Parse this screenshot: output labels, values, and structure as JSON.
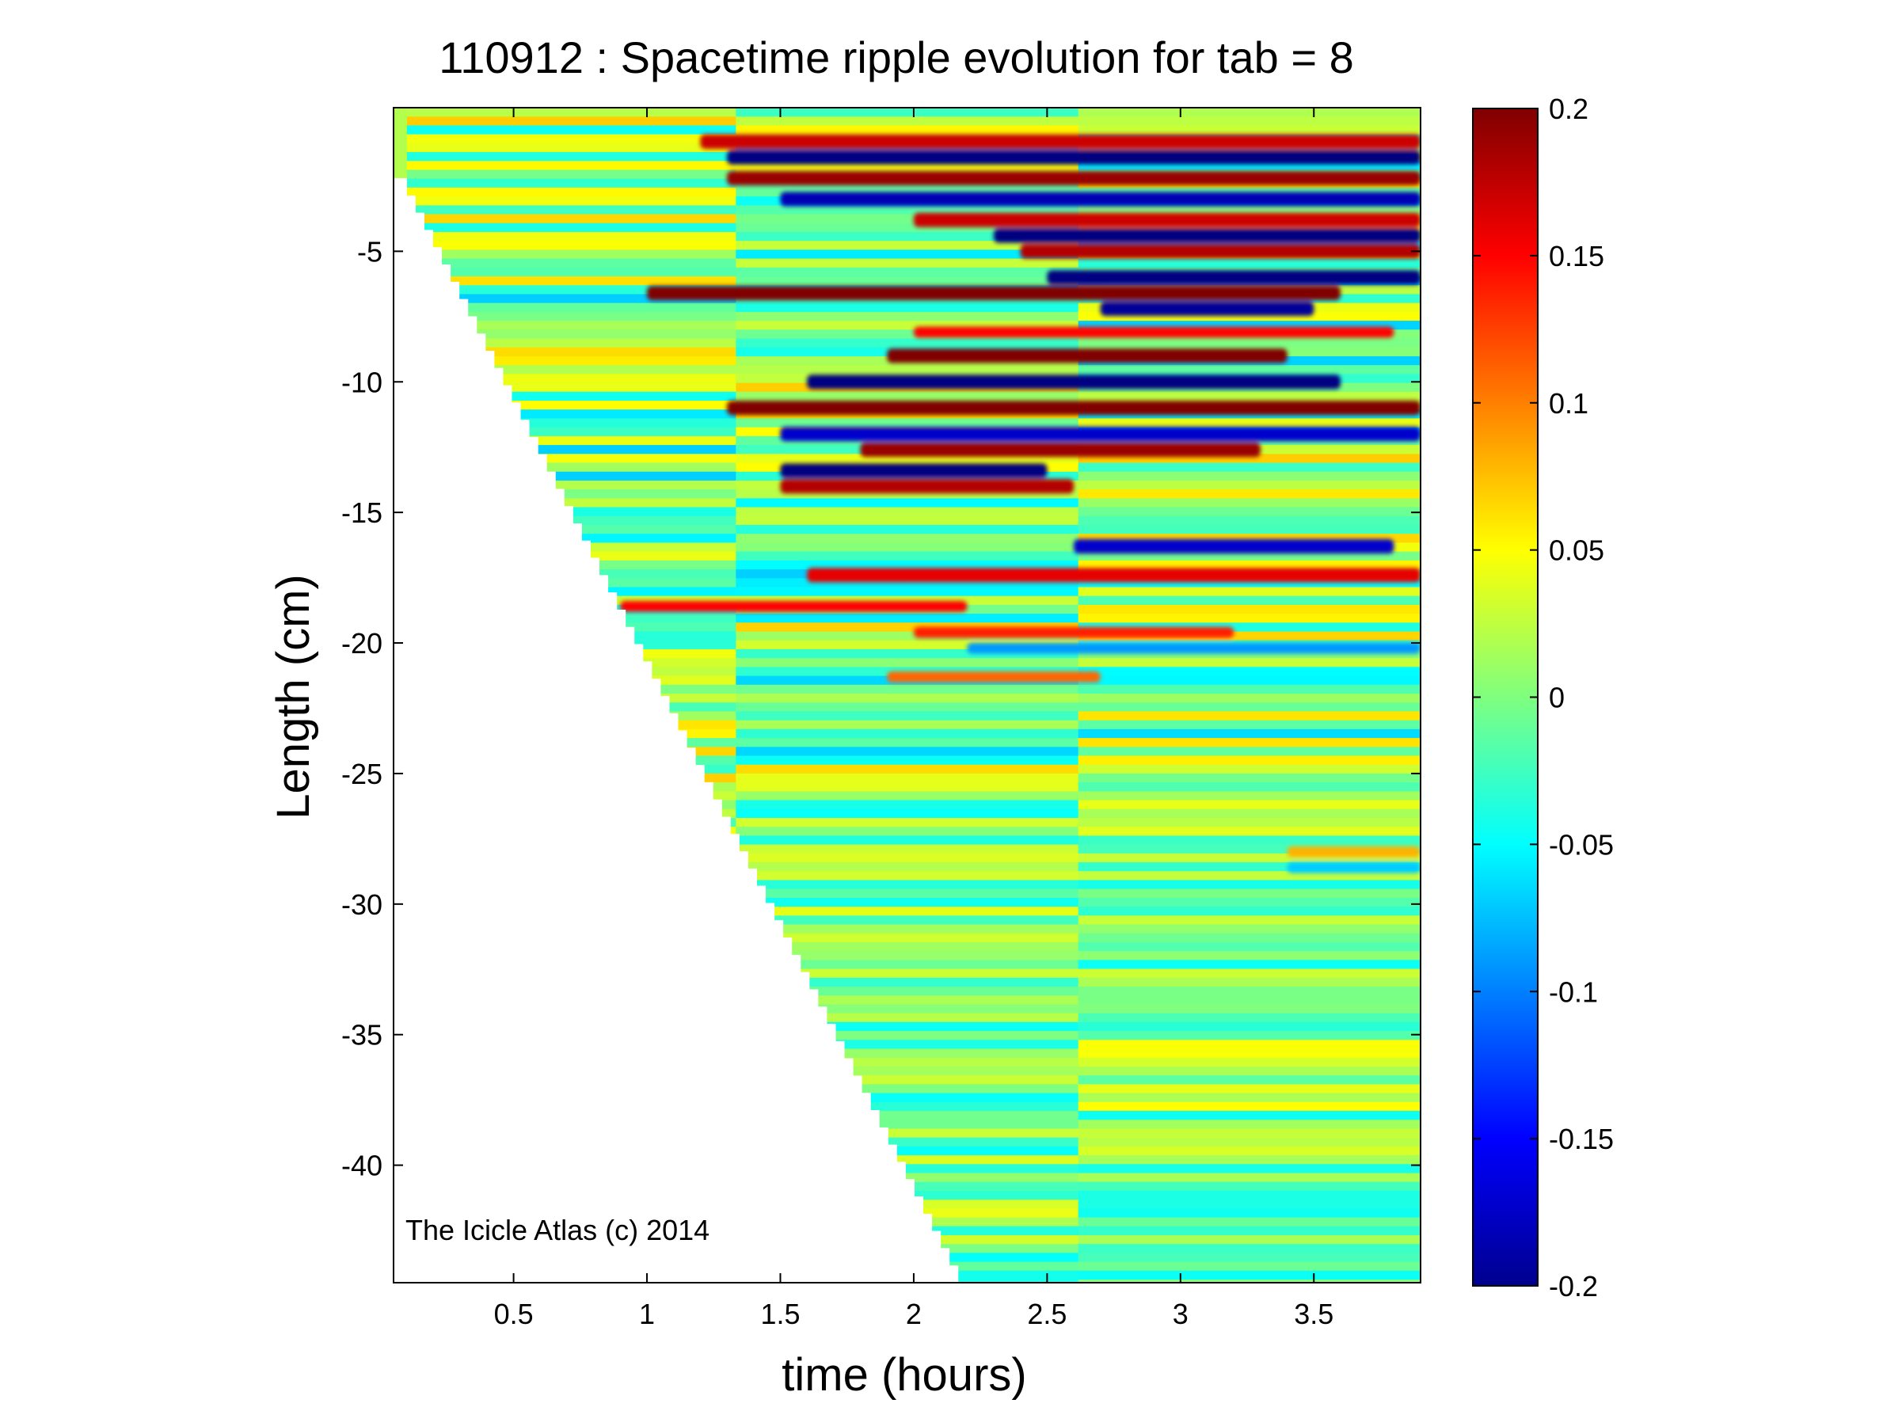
{
  "chart_data": {
    "type": "heatmap",
    "title": "110912 : Spacetime ripple evolution for tab = 8",
    "xlabel": "time (hours)",
    "ylabel": "Length (cm)",
    "xlim": [
      0.05,
      3.9
    ],
    "ylim": [
      -44.5,
      0.5
    ],
    "xticks": [
      0.5,
      1,
      1.5,
      2,
      2.5,
      3,
      3.5
    ],
    "xtick_labels": [
      "0.5",
      "1",
      "1.5",
      "2",
      "2.5",
      "3",
      "3.5"
    ],
    "yticks": [
      -5,
      -10,
      -15,
      -20,
      -25,
      -30,
      -35,
      -40
    ],
    "ytick_labels": [
      "-5",
      "-10",
      "-15",
      "-20",
      "-25",
      "-30",
      "-35",
      "-40"
    ],
    "colorbar": {
      "colormap": "jet",
      "clim": [
        -0.2,
        0.2
      ],
      "ticks": [
        0.2,
        0.15,
        0.1,
        0.05,
        0,
        -0.05,
        -0.1,
        -0.15,
        -0.2
      ],
      "tick_labels": [
        "0.2",
        "0.15",
        "0.1",
        "0.05",
        "0",
        "-0.05",
        "-0.1",
        "-0.15",
        "-0.2"
      ]
    },
    "domain_edge": {
      "description": "data exists to the right of a staircase edge that grows with time",
      "time_at_top": 0.1,
      "time_at_bottom": 2.2,
      "length_at_top": -2.2,
      "length_at_bottom": -44.5
    },
    "dominant_bands": [
      {
        "length": -0.8,
        "t_start": 1.2,
        "t_end": 3.9,
        "amplitude": 0.17
      },
      {
        "length": -1.4,
        "t_start": 1.3,
        "t_end": 3.9,
        "amplitude": -0.2
      },
      {
        "length": -2.2,
        "t_start": 1.3,
        "t_end": 3.9,
        "amplitude": 0.19
      },
      {
        "length": -3.0,
        "t_start": 1.5,
        "t_end": 3.9,
        "amplitude": -0.18
      },
      {
        "length": -3.8,
        "t_start": 2.0,
        "t_end": 3.9,
        "amplitude": 0.17
      },
      {
        "length": -4.4,
        "t_start": 2.3,
        "t_end": 3.9,
        "amplitude": -0.2
      },
      {
        "length": -5.0,
        "t_start": 2.4,
        "t_end": 3.9,
        "amplitude": 0.18
      },
      {
        "length": -6.0,
        "t_start": 2.5,
        "t_end": 3.9,
        "amplitude": -0.2
      },
      {
        "length": -6.6,
        "t_start": 1.0,
        "t_end": 3.6,
        "amplitude": 0.2
      },
      {
        "length": -7.2,
        "t_start": 2.7,
        "t_end": 3.5,
        "amplitude": -0.19
      },
      {
        "length": -8.1,
        "t_start": 2.0,
        "t_end": 3.8,
        "amplitude": 0.15
      },
      {
        "length": -9.0,
        "t_start": 1.9,
        "t_end": 3.4,
        "amplitude": 0.2
      },
      {
        "length": -10.0,
        "t_start": 1.6,
        "t_end": 3.6,
        "amplitude": -0.2
      },
      {
        "length": -11.0,
        "t_start": 1.3,
        "t_end": 3.9,
        "amplitude": 0.2
      },
      {
        "length": -12.0,
        "t_start": 1.5,
        "t_end": 3.9,
        "amplitude": -0.17
      },
      {
        "length": -12.6,
        "t_start": 1.8,
        "t_end": 3.3,
        "amplitude": 0.19
      },
      {
        "length": -13.4,
        "t_start": 1.5,
        "t_end": 2.5,
        "amplitude": -0.2
      },
      {
        "length": -14.0,
        "t_start": 1.5,
        "t_end": 2.6,
        "amplitude": 0.18
      },
      {
        "length": -16.3,
        "t_start": 2.6,
        "t_end": 3.8,
        "amplitude": -0.17
      },
      {
        "length": -17.4,
        "t_start": 1.6,
        "t_end": 3.9,
        "amplitude": 0.16
      },
      {
        "length": -18.6,
        "t_start": 0.9,
        "t_end": 2.2,
        "amplitude": 0.15
      },
      {
        "length": -19.6,
        "t_start": 2.0,
        "t_end": 3.2,
        "amplitude": 0.14
      },
      {
        "length": -20.2,
        "t_start": 2.2,
        "t_end": 3.9,
        "amplitude": -0.09
      },
      {
        "length": -21.3,
        "t_start": 1.9,
        "t_end": 2.7,
        "amplitude": 0.11
      },
      {
        "length": -28.0,
        "t_start": 3.4,
        "t_end": 3.9,
        "amplitude": 0.08
      },
      {
        "length": -28.6,
        "t_start": 3.4,
        "t_end": 3.9,
        "amplitude": -0.07
      }
    ]
  },
  "annotation": "The Icicle Atlas (c) 2014"
}
